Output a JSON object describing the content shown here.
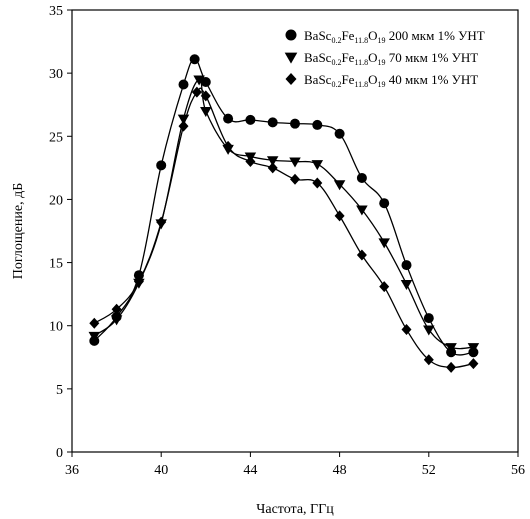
{
  "chart_data": {
    "type": "line",
    "title": "",
    "xlabel": "Частота, ГГц",
    "ylabel": "Поглощение, дБ",
    "xlim": [
      36,
      56
    ],
    "ylim": [
      0,
      35
    ],
    "xticks": [
      36,
      40,
      44,
      48,
      52,
      56
    ],
    "yticks": [
      0,
      5,
      10,
      15,
      20,
      25,
      30,
      35
    ],
    "grid": false,
    "legend_position": "top-right",
    "series": [
      {
        "name": "BaSc0.2Fe11.8O19 200 мкм 1% УНТ",
        "legend": {
          "pre": "BaSc",
          "sub1": "0.2",
          "mid1": "Fe",
          "sub2": "11.8",
          "mid2": "O",
          "sub3": "19",
          "post": " 200 мкм 1% УНТ"
        },
        "marker": "circle",
        "color": "#000000",
        "x": [
          37,
          38,
          39,
          40,
          41,
          41.5,
          42,
          43,
          44,
          45,
          46,
          47,
          48,
          49,
          50,
          51,
          52,
          53,
          54
        ],
        "y": [
          8.8,
          10.7,
          14.0,
          22.7,
          29.1,
          31.1,
          29.3,
          26.4,
          26.3,
          26.1,
          26.0,
          25.9,
          25.2,
          21.7,
          19.7,
          14.8,
          10.6,
          7.9,
          7.9
        ]
      },
      {
        "name": "BaSc0.2Fe11.8O19 70 мкм 1% УНТ",
        "legend": {
          "pre": "BaSc",
          "sub1": "0.2",
          "mid1": "Fe",
          "sub2": "11.8",
          "mid2": "O",
          "sub3": "19",
          "post": " 70 мкм 1% УНТ"
        },
        "marker": "triangle-down",
        "color": "#000000",
        "x": [
          37,
          38,
          39,
          40,
          41,
          41.7,
          42,
          43,
          44,
          45,
          46,
          47,
          48,
          49,
          50,
          51,
          52,
          53,
          54
        ],
        "y": [
          9.2,
          10.5,
          13.4,
          18.1,
          26.4,
          29.5,
          27.0,
          24.0,
          23.4,
          23.1,
          23.0,
          22.8,
          21.2,
          19.2,
          16.6,
          13.3,
          9.7,
          8.3,
          8.3
        ]
      },
      {
        "name": "BaSc0.2Fe11.8O19 40 мкм 1% УНТ",
        "legend": {
          "pre": "BaSc",
          "sub1": "0.2",
          "mid1": "Fe",
          "sub2": "11.8",
          "mid2": "O",
          "sub3": "19",
          "post": " 40 мкм 1% УНТ"
        },
        "marker": "diamond",
        "color": "#000000",
        "x": [
          37,
          38,
          39,
          40,
          41,
          41.6,
          42,
          43,
          44,
          45,
          46,
          47,
          48,
          49,
          50,
          51,
          52,
          53,
          54
        ],
        "y": [
          10.2,
          11.3,
          13.5,
          18.2,
          25.8,
          28.5,
          28.2,
          24.2,
          23.0,
          22.5,
          21.6,
          21.3,
          18.7,
          15.6,
          13.1,
          9.7,
          7.3,
          6.7,
          7.0
        ]
      }
    ]
  }
}
